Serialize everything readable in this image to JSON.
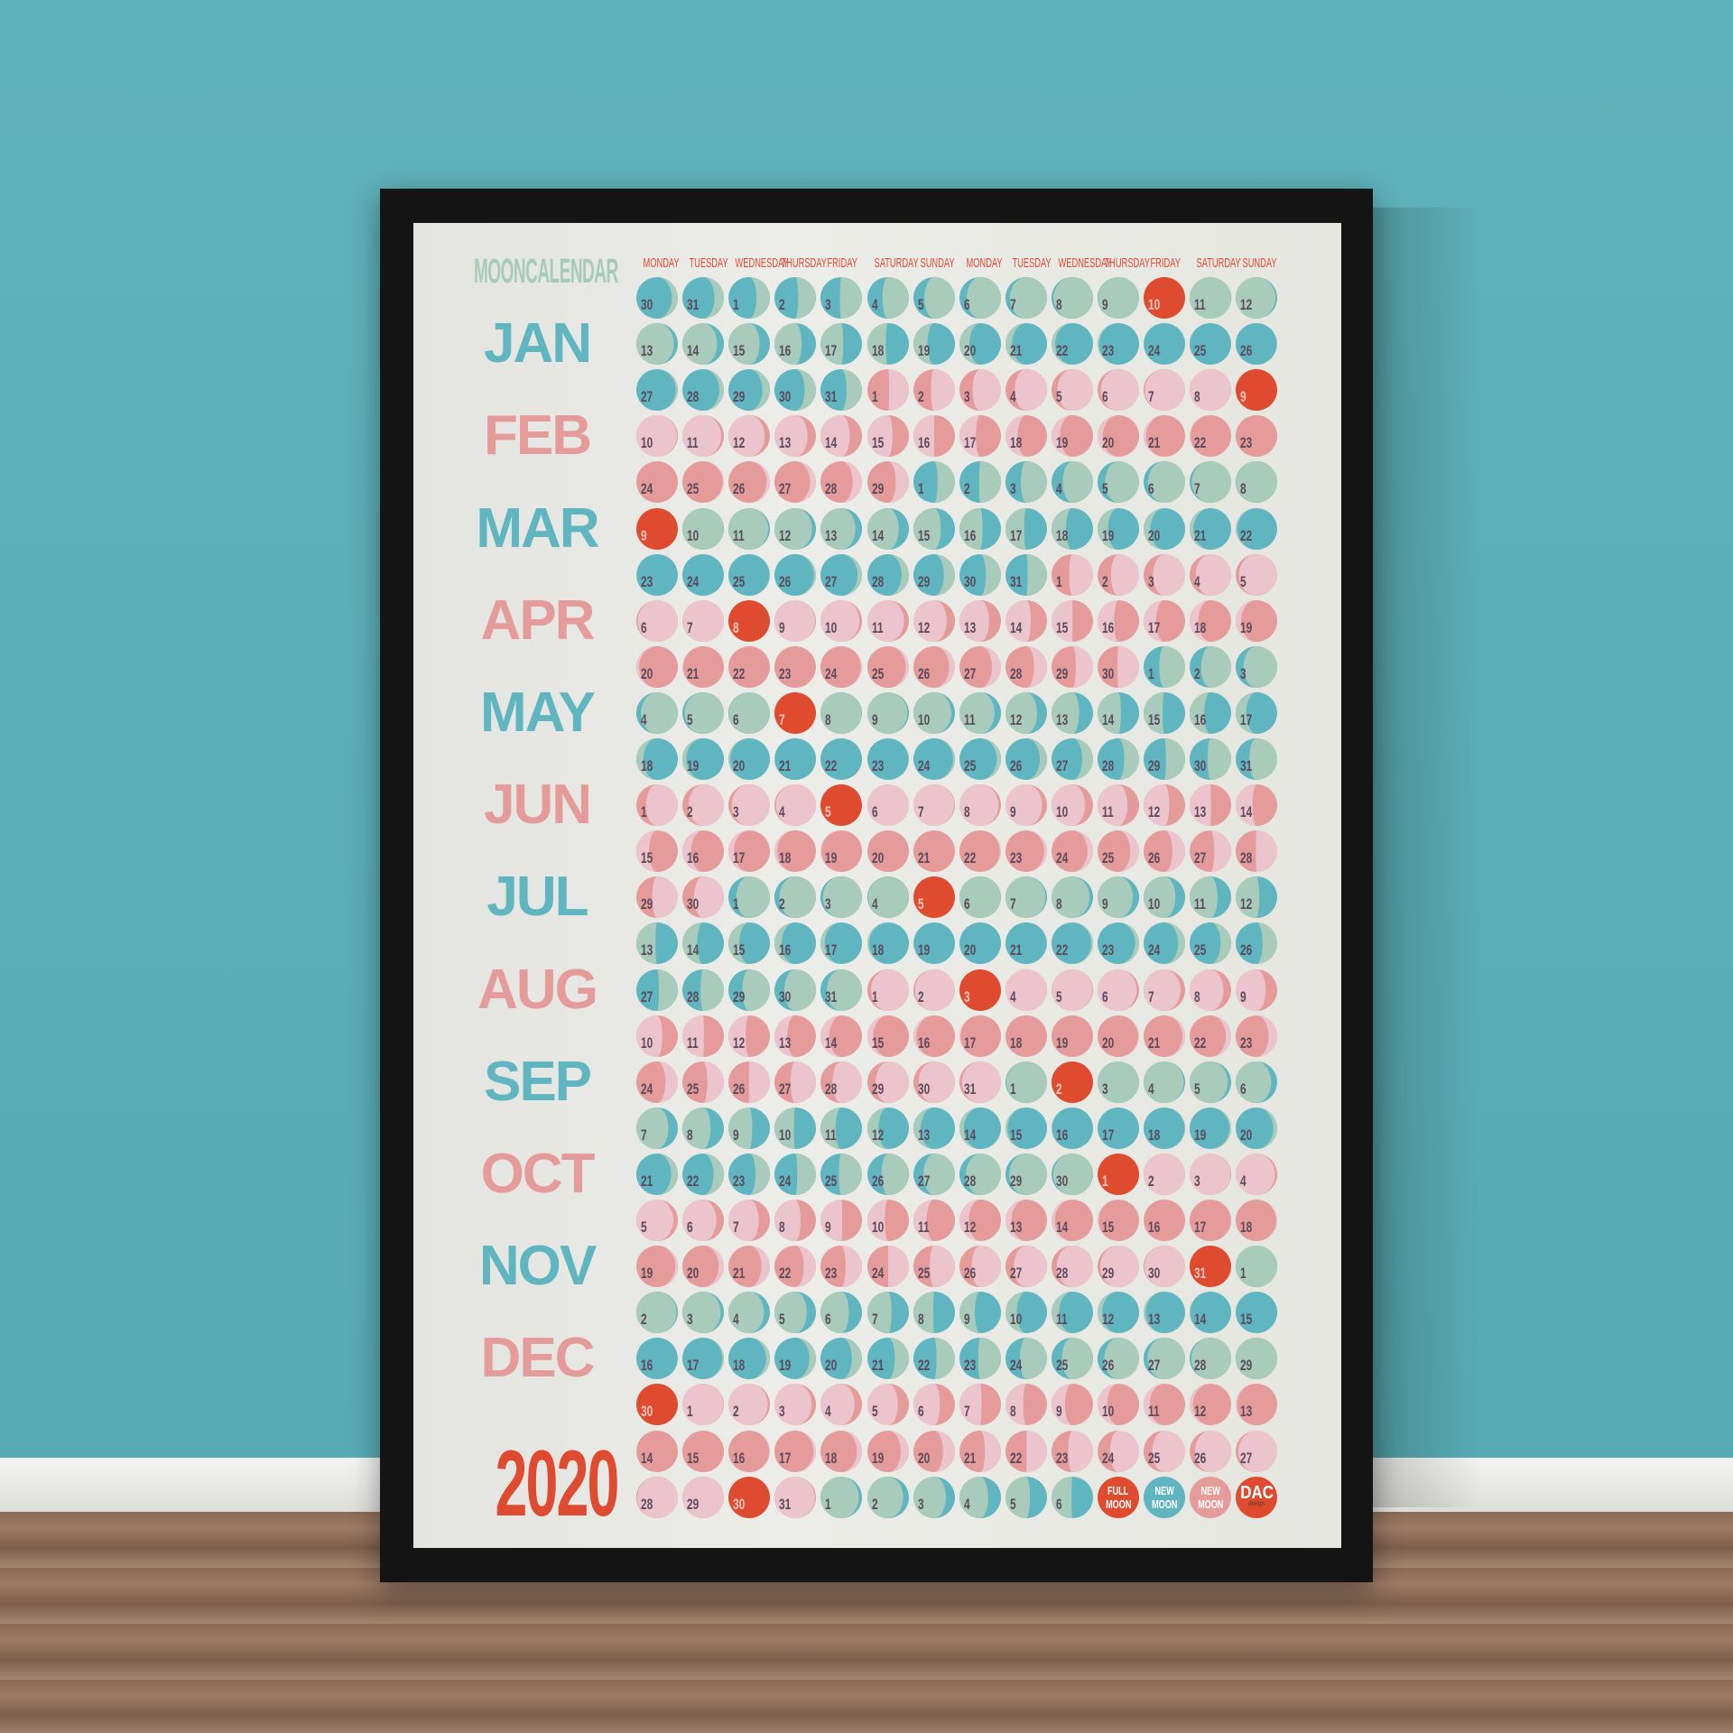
{
  "poster": {
    "title": "MOONCALENDAR",
    "year": "2020",
    "weekdays": [
      "MONDAY",
      "TUESDAY",
      "WEDNESDAY",
      "THURSDAY",
      "FRIDAY",
      "SATURDAY",
      "SUNDAY",
      "MONDAY",
      "TUESDAY",
      "WEDNESDAY",
      "THURSDAY",
      "FRIDAY",
      "SATURDAY",
      "SUNDAY"
    ],
    "months": [
      "JAN",
      "FEB",
      "MAR",
      "APR",
      "MAY",
      "JUN",
      "JUL",
      "AUG",
      "SEP",
      "OCT",
      "NOV",
      "DEC"
    ],
    "colors": {
      "teal_dark": "#5fb5c0",
      "teal_light": "#a9cbbb",
      "pink_dark": "#e59b99",
      "pink_light": "#ecc4cd",
      "full_moon": "#df4b2f",
      "number": "#5b4a5b"
    }
  },
  "calendar": {
    "full_moons": [
      "2020-01-10",
      "2020-02-09",
      "2020-03-09",
      "2020-04-08",
      "2020-05-07",
      "2020-06-05",
      "2020-07-05",
      "2020-08-03",
      "2020-09-02",
      "2020-10-01",
      "2020-10-31",
      "2020-11-30",
      "2020-12-30"
    ],
    "weeks": [
      [
        30,
        31,
        1,
        2,
        3,
        4,
        5,
        6,
        7,
        8,
        9,
        10,
        11,
        12
      ],
      [
        13,
        14,
        15,
        16,
        17,
        18,
        19,
        20,
        21,
        22,
        23,
        24,
        25,
        26
      ],
      [
        27,
        28,
        29,
        30,
        31,
        1,
        2,
        3,
        4,
        5,
        6,
        7,
        8,
        9
      ],
      [
        10,
        11,
        12,
        13,
        14,
        15,
        16,
        17,
        18,
        19,
        20,
        21,
        22,
        23
      ],
      [
        24,
        25,
        26,
        27,
        28,
        29,
        1,
        2,
        3,
        4,
        5,
        6,
        7,
        8
      ],
      [
        9,
        10,
        11,
        12,
        13,
        14,
        15,
        16,
        17,
        18,
        19,
        20,
        21,
        22
      ],
      [
        23,
        24,
        25,
        26,
        27,
        28,
        29,
        30,
        31,
        1,
        2,
        3,
        4,
        5
      ],
      [
        6,
        7,
        8,
        9,
        10,
        11,
        12,
        13,
        14,
        15,
        16,
        17,
        18,
        19
      ],
      [
        20,
        21,
        22,
        23,
        24,
        25,
        26,
        27,
        28,
        29,
        30,
        1,
        2,
        3
      ],
      [
        4,
        5,
        6,
        7,
        8,
        9,
        10,
        11,
        12,
        13,
        14,
        15,
        16,
        17
      ],
      [
        18,
        19,
        20,
        21,
        22,
        23,
        24,
        25,
        26,
        27,
        28,
        29,
        30,
        31
      ],
      [
        1,
        2,
        3,
        4,
        5,
        6,
        7,
        8,
        9,
        10,
        11,
        12,
        13,
        14
      ],
      [
        15,
        16,
        17,
        18,
        19,
        20,
        21,
        22,
        23,
        24,
        25,
        26,
        27,
        28
      ],
      [
        29,
        30,
        1,
        2,
        3,
        4,
        5,
        6,
        7,
        8,
        9,
        10,
        11,
        12
      ],
      [
        13,
        14,
        15,
        16,
        17,
        18,
        19,
        20,
        21,
        22,
        23,
        24,
        25,
        26
      ],
      [
        27,
        28,
        29,
        30,
        31,
        1,
        2,
        3,
        4,
        5,
        6,
        7,
        8,
        9
      ],
      [
        10,
        11,
        12,
        13,
        14,
        15,
        16,
        17,
        18,
        19,
        20,
        21,
        22,
        23
      ],
      [
        24,
        25,
        26,
        27,
        28,
        29,
        30,
        31,
        1,
        2,
        3,
        4,
        5,
        6
      ],
      [
        7,
        8,
        9,
        10,
        11,
        12,
        13,
        14,
        15,
        16,
        17,
        18,
        19,
        20
      ],
      [
        21,
        22,
        23,
        24,
        25,
        26,
        27,
        28,
        29,
        30,
        1,
        2,
        3,
        4
      ],
      [
        5,
        6,
        7,
        8,
        9,
        10,
        11,
        12,
        13,
        14,
        15,
        16,
        17,
        18
      ],
      [
        19,
        20,
        21,
        22,
        23,
        24,
        25,
        26,
        27,
        28,
        29,
        30,
        31,
        1
      ],
      [
        2,
        3,
        4,
        5,
        6,
        7,
        8,
        9,
        10,
        11,
        12,
        13,
        14,
        15
      ],
      [
        16,
        17,
        18,
        19,
        20,
        21,
        22,
        23,
        24,
        25,
        26,
        27,
        28,
        29
      ],
      [
        30,
        1,
        2,
        3,
        4,
        5,
        6,
        7,
        8,
        9,
        10,
        11,
        12,
        13
      ],
      [
        14,
        15,
        16,
        17,
        18,
        19,
        20,
        21,
        22,
        23,
        24,
        25,
        26,
        27
      ],
      [
        28,
        29,
        30,
        31,
        1,
        2,
        3,
        4,
        5,
        6
      ]
    ]
  },
  "legend": [
    {
      "line1": "FULL",
      "line2": "MOON",
      "color": "#df4b2f"
    },
    {
      "line1": "NEW",
      "line2": "MOON",
      "color": "#5fb5c0"
    },
    {
      "line1": "NEW",
      "line2": "MOON",
      "color": "#e59b99"
    }
  ],
  "logo": {
    "text": "DAC",
    "sub": "design",
    "color": "#df4b2f"
  }
}
